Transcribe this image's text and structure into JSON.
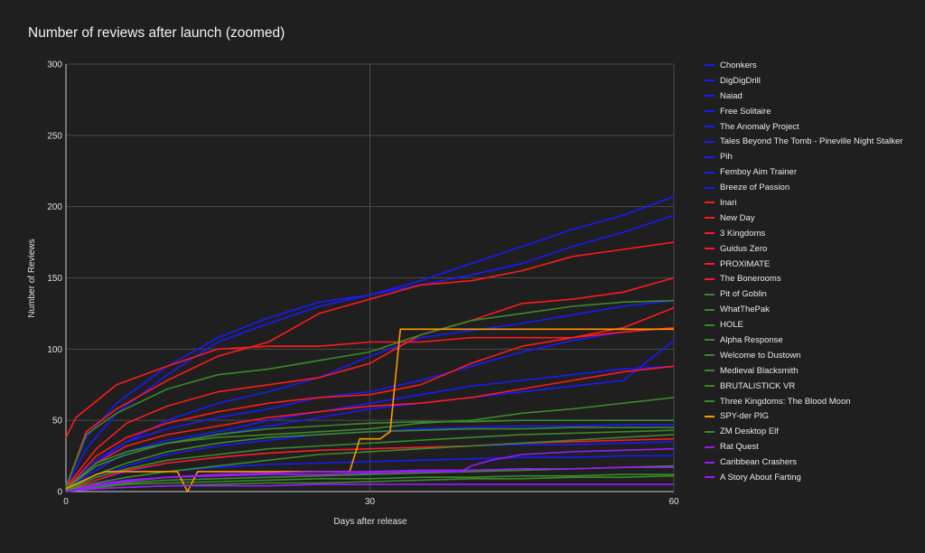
{
  "chart_data": {
    "type": "line",
    "title": "Number of reviews after launch (zoomed)",
    "xlabel": "Days after release",
    "ylabel": "Number of Reviews",
    "xlim": [
      0,
      60
    ],
    "ylim": [
      0,
      300
    ],
    "xticks": [
      0,
      30,
      60
    ],
    "yticks": [
      0,
      50,
      100,
      150,
      200,
      250,
      300
    ],
    "grid": true,
    "legend_position": "right",
    "series": [
      {
        "name": "Chonkers",
        "color": "#1a1aff",
        "x": [
          0,
          2,
          5,
          10,
          15,
          20,
          25,
          30,
          35,
          40,
          45,
          50,
          55,
          60
        ],
        "y": [
          4,
          38,
          62,
          88,
          108,
          122,
          133,
          138,
          148,
          160,
          172,
          184,
          194,
          207
        ]
      },
      {
        "name": "DigDigDrill",
        "color": "#1a1aff",
        "x": [
          0,
          2,
          5,
          10,
          15,
          20,
          25,
          30,
          35,
          40,
          45,
          50,
          55,
          60
        ],
        "y": [
          3,
          30,
          55,
          82,
          105,
          118,
          130,
          138,
          145,
          152,
          160,
          172,
          182,
          194
        ]
      },
      {
        "name": "Naiad",
        "color": "#1a1aff",
        "x": [
          0,
          3,
          6,
          10,
          15,
          20,
          25,
          30,
          35,
          40,
          45,
          50,
          55,
          60
        ],
        "y": [
          2,
          20,
          35,
          50,
          62,
          70,
          80,
          95,
          108,
          113,
          118,
          124,
          130,
          134
        ]
      },
      {
        "name": "Free Solitaire",
        "color": "#1a1aff",
        "x": [
          0,
          3,
          6,
          10,
          15,
          20,
          25,
          30,
          35,
          40,
          45,
          50,
          55,
          60
        ],
        "y": [
          3,
          22,
          35,
          44,
          52,
          58,
          66,
          70,
          78,
          88,
          98,
          106,
          112,
          115
        ]
      },
      {
        "name": "The Anomaly Project",
        "color": "#1a1aff",
        "x": [
          0,
          3,
          6,
          10,
          15,
          20,
          25,
          30,
          35,
          40,
          45,
          50,
          55,
          60
        ],
        "y": [
          2,
          15,
          28,
          36,
          42,
          50,
          56,
          62,
          68,
          74,
          78,
          82,
          86,
          88
        ]
      },
      {
        "name": "Tales Beyond The Tomb - Pineville Night Stalker",
        "color": "#1a1aff",
        "x": [
          0,
          3,
          6,
          10,
          15,
          20,
          25,
          30,
          35,
          40,
          45,
          50,
          55,
          60
        ],
        "y": [
          2,
          18,
          26,
          34,
          40,
          46,
          52,
          58,
          62,
          66,
          70,
          74,
          78,
          106
        ]
      },
      {
        "name": "Pih",
        "color": "#1a1aff",
        "x": [
          0,
          3,
          6,
          10,
          15,
          20,
          25,
          30,
          35,
          40,
          45,
          50,
          55,
          60
        ],
        "y": [
          1,
          10,
          18,
          26,
          32,
          36,
          40,
          42,
          44,
          45,
          46,
          46,
          47,
          47
        ]
      },
      {
        "name": "Femboy Aim Trainer",
        "color": "#1a1aff",
        "x": [
          0,
          3,
          6,
          10,
          15,
          20,
          25,
          30,
          35,
          40,
          45,
          50,
          55,
          60
        ],
        "y": [
          1,
          8,
          14,
          20,
          24,
          27,
          29,
          30,
          31,
          32,
          33,
          33,
          34,
          35
        ]
      },
      {
        "name": "Breeze of Passion",
        "color": "#1a1aff",
        "x": [
          0,
          3,
          6,
          10,
          15,
          20,
          25,
          30,
          35,
          40,
          45,
          50,
          55,
          60
        ],
        "y": [
          1,
          6,
          10,
          14,
          17,
          19,
          20,
          21,
          22,
          23,
          24,
          24,
          25,
          25
        ]
      },
      {
        "name": "Inari",
        "color": "#ff1a1a",
        "x": [
          0,
          2,
          5,
          10,
          15,
          20,
          25,
          30,
          35,
          40,
          45,
          50,
          55,
          60
        ],
        "y": [
          3,
          42,
          58,
          78,
          95,
          105,
          125,
          135,
          145,
          148,
          155,
          165,
          170,
          175
        ]
      },
      {
        "name": "New Day",
        "color": "#ff1a1a",
        "x": [
          0,
          1,
          5,
          10,
          15,
          20,
          25,
          30,
          35,
          40,
          45,
          50,
          55,
          60
        ],
        "y": [
          38,
          52,
          75,
          88,
          100,
          102,
          102,
          105,
          105,
          108,
          108,
          108,
          112,
          115
        ]
      },
      {
        "name": "3 Kingdoms",
        "color": "#ff1a1a",
        "x": [
          0,
          3,
          6,
          10,
          15,
          20,
          25,
          30,
          35,
          40,
          45,
          50,
          55,
          60
        ],
        "y": [
          3,
          30,
          48,
          60,
          70,
          75,
          80,
          90,
          110,
          120,
          132,
          135,
          140,
          150
        ]
      },
      {
        "name": "Guidus Zero",
        "color": "#ff1a1a",
        "x": [
          0,
          3,
          6,
          10,
          15,
          20,
          25,
          30,
          35,
          40,
          45,
          50,
          55,
          60
        ],
        "y": [
          2,
          25,
          38,
          48,
          56,
          62,
          66,
          68,
          75,
          90,
          102,
          108,
          115,
          129
        ]
      },
      {
        "name": "PROXIMATE",
        "color": "#ff1a1a",
        "x": [
          0,
          3,
          6,
          10,
          15,
          20,
          25,
          30,
          35,
          40,
          45,
          50,
          55,
          60
        ],
        "y": [
          2,
          20,
          32,
          40,
          46,
          52,
          56,
          60,
          62,
          66,
          72,
          78,
          84,
          88
        ]
      },
      {
        "name": "The Bonerooms",
        "color": "#ff1a1a",
        "x": [
          0,
          3,
          6,
          10,
          15,
          20,
          25,
          30,
          35,
          40,
          45,
          50,
          55,
          60
        ],
        "y": [
          1,
          8,
          15,
          20,
          24,
          27,
          29,
          30,
          31,
          32,
          34,
          35,
          36,
          37
        ]
      },
      {
        "name": "Pit of Goblin",
        "color": "#3a8a2a",
        "x": [
          0,
          2,
          5,
          10,
          15,
          20,
          25,
          30,
          35,
          40,
          45,
          50,
          55,
          60
        ],
        "y": [
          3,
          40,
          55,
          72,
          82,
          86,
          92,
          98,
          110,
          120,
          125,
          130,
          133,
          134
        ]
      },
      {
        "name": "WhatThePak",
        "color": "#3a8a2a",
        "x": [
          0,
          3,
          6,
          10,
          15,
          20,
          25,
          30,
          35,
          40,
          45,
          50,
          55,
          60
        ],
        "y": [
          2,
          20,
          28,
          34,
          38,
          40,
          42,
          44,
          48,
          50,
          55,
          58,
          62,
          66
        ]
      },
      {
        "name": "HOLE",
        "color": "#3a8a2a",
        "x": [
          0,
          3,
          6,
          10,
          15,
          20,
          25,
          30,
          35,
          40,
          45,
          50,
          55,
          60
        ],
        "y": [
          2,
          18,
          26,
          34,
          40,
          44,
          46,
          48,
          49,
          49,
          50,
          50,
          50,
          50
        ]
      },
      {
        "name": "Alpha Response",
        "color": "#3a8a2a",
        "x": [
          0,
          3,
          6,
          10,
          15,
          20,
          25,
          30,
          35,
          40,
          45,
          50,
          55,
          60
        ],
        "y": [
          1,
          12,
          20,
          28,
          34,
          38,
          40,
          42,
          43,
          44,
          44,
          45,
          45,
          45
        ]
      },
      {
        "name": "Welcome to Dustown",
        "color": "#3a8a2a",
        "x": [
          0,
          3,
          6,
          10,
          15,
          20,
          25,
          30,
          35,
          40,
          45,
          50,
          55,
          60
        ],
        "y": [
          1,
          10,
          16,
          22,
          26,
          30,
          32,
          34,
          36,
          38,
          40,
          41,
          42,
          43
        ]
      },
      {
        "name": "Medieval Blacksmith",
        "color": "#3a8a2a",
        "x": [
          0,
          3,
          6,
          10,
          15,
          20,
          25,
          30,
          35,
          40,
          45,
          50,
          55,
          60
        ],
        "y": [
          1,
          6,
          10,
          14,
          18,
          22,
          26,
          28,
          30,
          32,
          34,
          36,
          38,
          40
        ]
      },
      {
        "name": "BRUTALISTICK VR",
        "color": "#3a8a2a",
        "x": [
          0,
          3,
          6,
          10,
          15,
          20,
          25,
          30,
          35,
          40,
          45,
          50,
          55,
          60
        ],
        "y": [
          1,
          4,
          6,
          8,
          9,
          10,
          11,
          12,
          13,
          14,
          15,
          16,
          17,
          18
        ]
      },
      {
        "name": "Three Kingdoms: The Blood Moon",
        "color": "#3a8a2a",
        "x": [
          0,
          3,
          6,
          10,
          15,
          20,
          25,
          30,
          35,
          40,
          45,
          50,
          55,
          60
        ],
        "y": [
          0,
          3,
          5,
          6,
          7,
          8,
          9,
          9,
          10,
          10,
          11,
          11,
          12,
          12
        ]
      },
      {
        "name": "SPY-der PIG",
        "color": "#ff9900",
        "x": [
          0,
          3,
          4,
          11,
          12,
          13,
          20,
          28,
          29,
          31,
          32,
          33,
          40,
          50,
          60
        ],
        "y": [
          2,
          12,
          14,
          14,
          0,
          14,
          14,
          14,
          37,
          37,
          42,
          114,
          114,
          114,
          114
        ]
      },
      {
        "name": "ZM Desktop Elf",
        "color": "#3a8a2a",
        "x": [
          0,
          3,
          6,
          10,
          15,
          20,
          25,
          30,
          35,
          40,
          45,
          50,
          55,
          60
        ],
        "y": [
          0,
          2,
          3,
          4,
          5,
          6,
          6,
          7,
          8,
          9,
          9,
          10,
          10,
          11
        ]
      },
      {
        "name": "Rat Quest",
        "color": "#9a1aff",
        "x": [
          0,
          3,
          6,
          10,
          15,
          20,
          25,
          30,
          35,
          39,
          40,
          42,
          45,
          50,
          55,
          60
        ],
        "y": [
          0,
          5,
          8,
          10,
          11,
          12,
          12,
          13,
          14,
          14,
          18,
          22,
          26,
          28,
          29,
          30
        ]
      },
      {
        "name": "Caribbean Crashers",
        "color": "#9a1aff",
        "x": [
          0,
          3,
          6,
          10,
          15,
          20,
          25,
          30,
          35,
          40,
          45,
          50,
          55,
          60
        ],
        "y": [
          0,
          4,
          7,
          10,
          12,
          13,
          14,
          14,
          15,
          15,
          16,
          16,
          17,
          17
        ]
      },
      {
        "name": "A Story About Farting",
        "color": "#9a1aff",
        "x": [
          0,
          3,
          6,
          10,
          15,
          20,
          25,
          30,
          35,
          40,
          45,
          50,
          55,
          60
        ],
        "y": [
          0,
          2,
          3,
          4,
          4,
          4,
          5,
          5,
          5,
          5,
          5,
          5,
          5,
          5
        ]
      }
    ]
  }
}
